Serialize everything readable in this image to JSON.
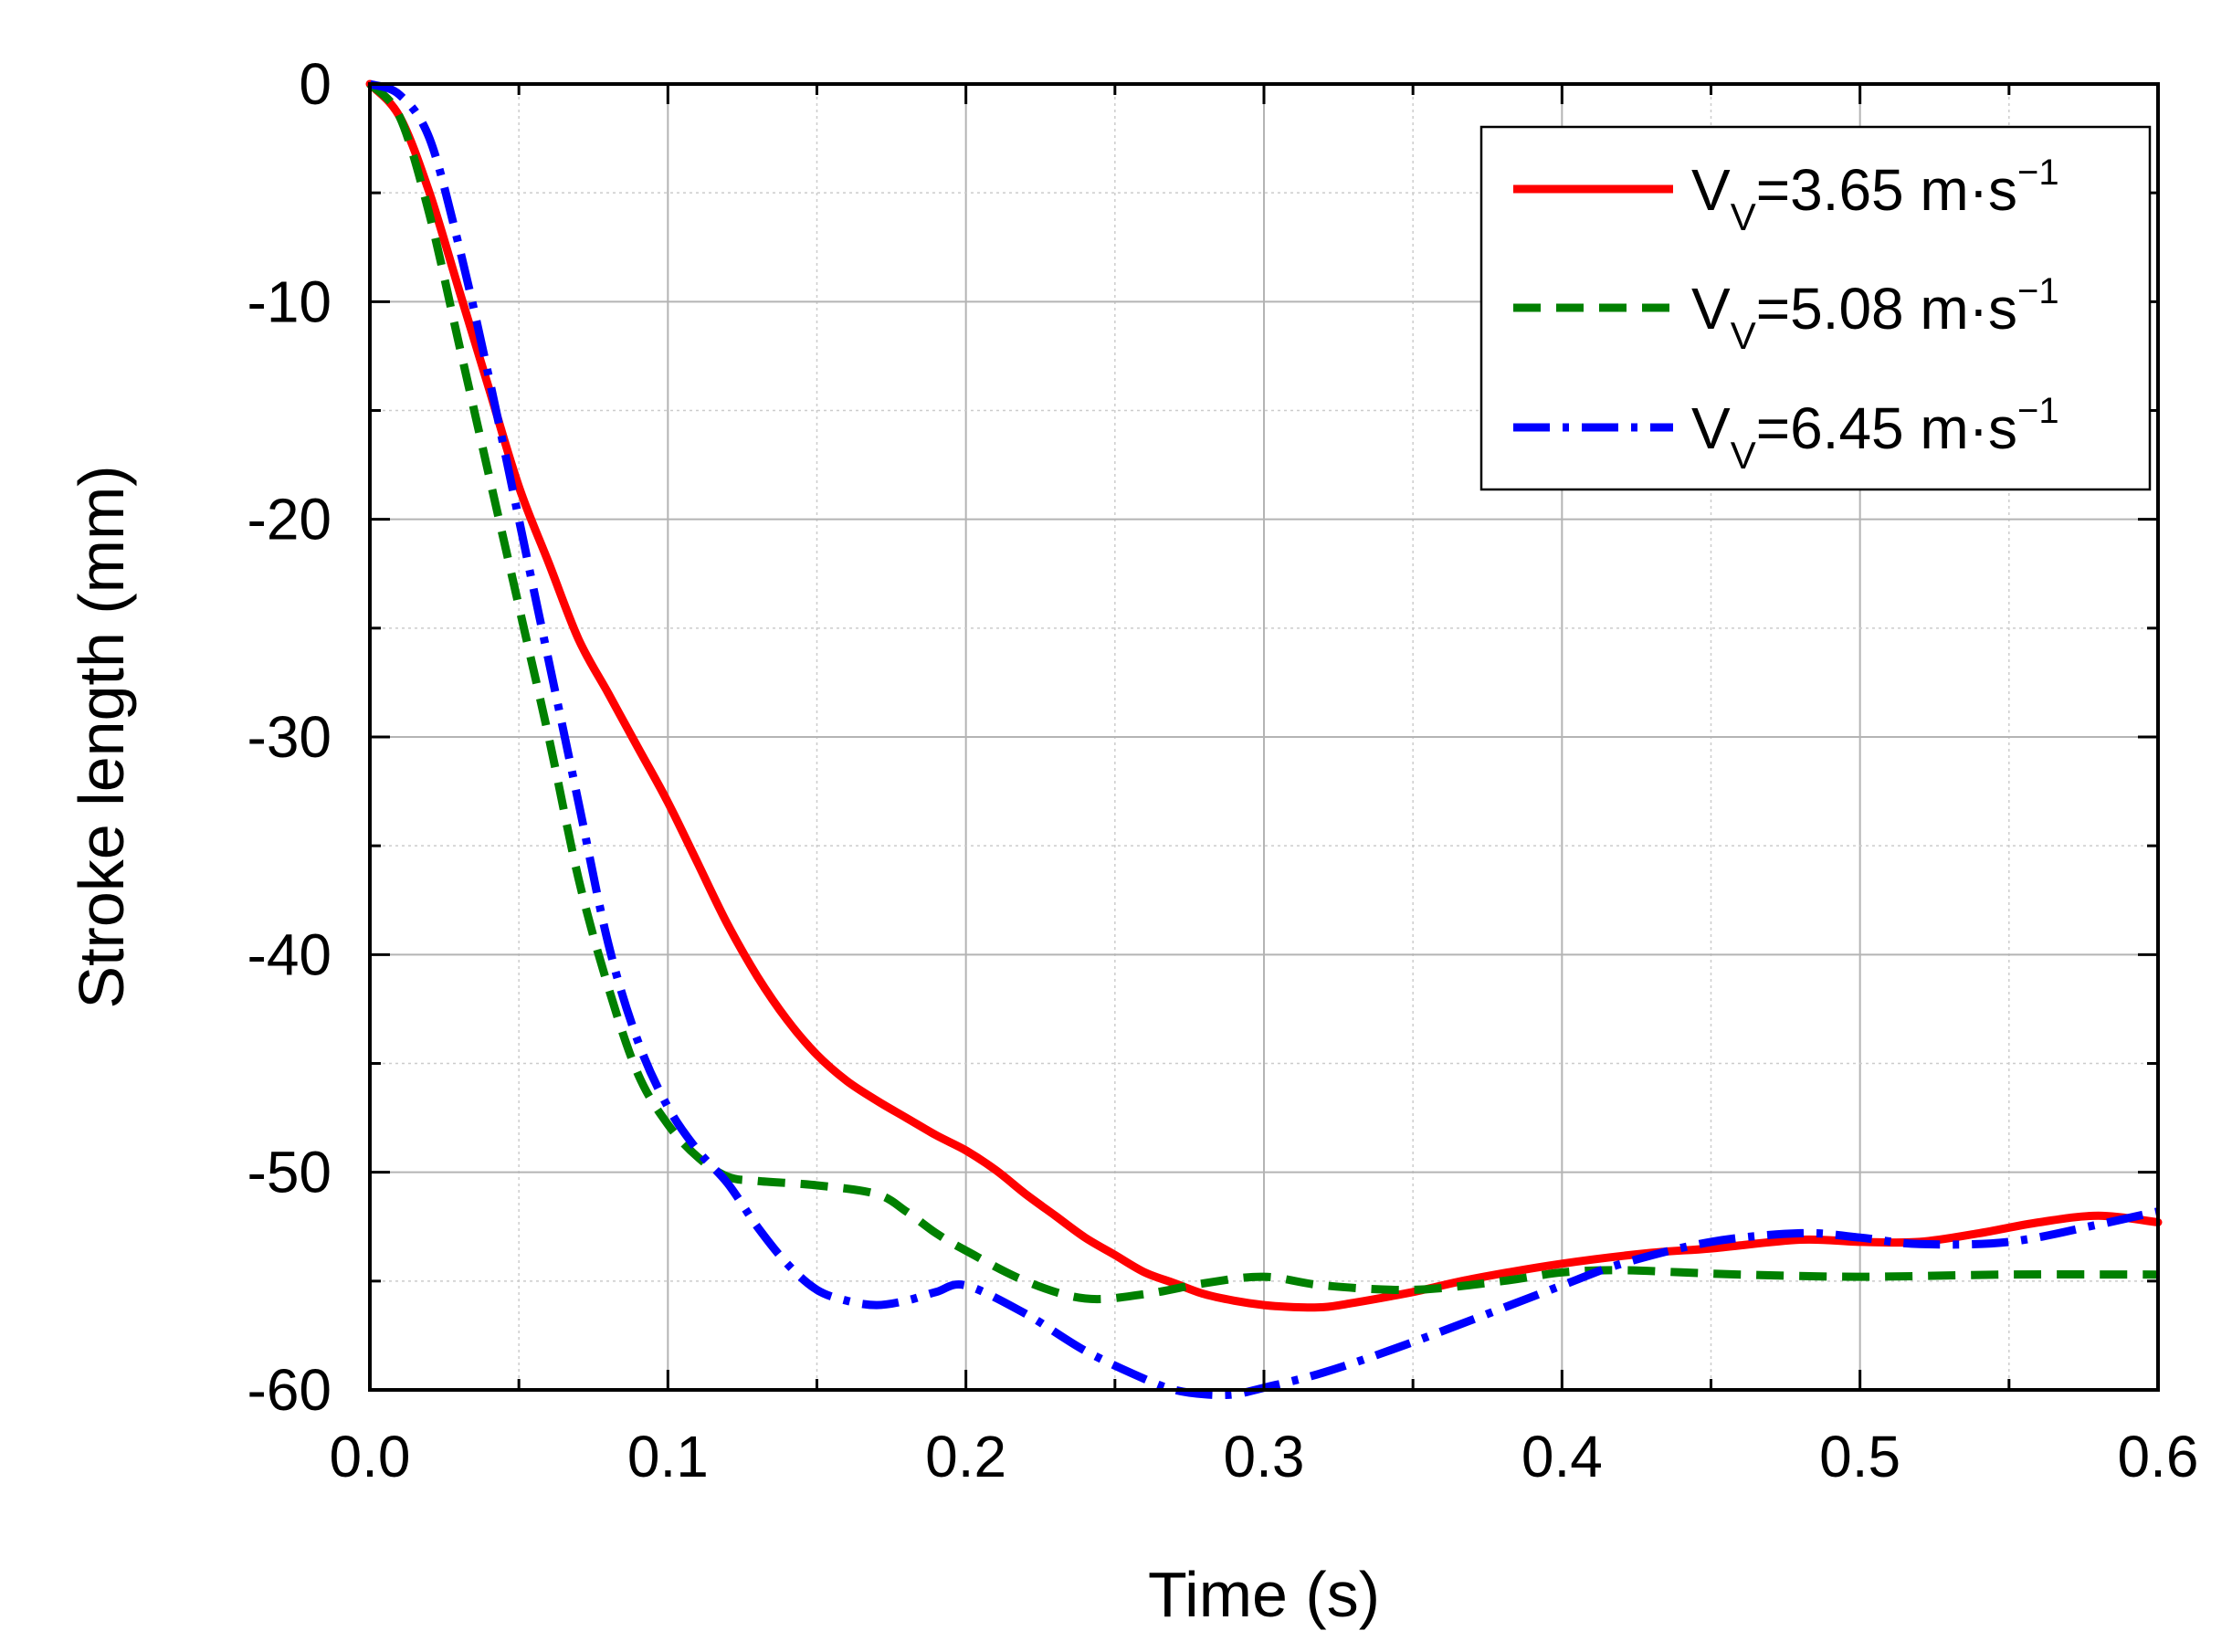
{
  "chart_data": {
    "type": "line",
    "title": "",
    "xlabel": "Time (s)",
    "ylabel": "Stroke length (mm)",
    "xlim": [
      0,
      0.6
    ],
    "ylim": [
      -60,
      0
    ],
    "x_ticks": [
      0.0,
      0.1,
      0.2,
      0.3,
      0.4,
      0.5,
      0.6
    ],
    "x_tick_labels": [
      "0.0",
      "0.1",
      "0.2",
      "0.3",
      "0.4",
      "0.5",
      "0.6"
    ],
    "y_ticks": [
      0,
      -10,
      -20,
      -30,
      -40,
      -50,
      -60
    ],
    "y_tick_labels": [
      "0",
      "-10",
      "-20",
      "-30",
      "-40",
      "-50",
      "-60"
    ],
    "grid": true,
    "legend_position": "top-right",
    "series": [
      {
        "name": "VV=3.65 m·s−1",
        "label_main": "V",
        "label_sub": "V",
        "label_value": "=3.65 m·s",
        "label_sup": "−1",
        "color": "#ff0000",
        "style": "solid",
        "x": [
          0,
          0.01,
          0.02,
          0.03,
          0.04,
          0.05,
          0.06,
          0.07,
          0.08,
          0.09,
          0.1,
          0.11,
          0.12,
          0.13,
          0.14,
          0.15,
          0.16,
          0.17,
          0.18,
          0.19,
          0.2,
          0.21,
          0.22,
          0.23,
          0.24,
          0.25,
          0.26,
          0.27,
          0.28,
          0.29,
          0.3,
          0.31,
          0.32,
          0.33,
          0.35,
          0.37,
          0.4,
          0.43,
          0.45,
          0.48,
          0.5,
          0.52,
          0.54,
          0.56,
          0.58,
          0.6
        ],
        "y": [
          0,
          -1.5,
          -5,
          -9.5,
          -14,
          -18.5,
          -22,
          -25.5,
          -28,
          -30.5,
          -33,
          -35.8,
          -38.6,
          -41,
          -43,
          -44.6,
          -45.8,
          -46.7,
          -47.5,
          -48.3,
          -49,
          -49.9,
          -51,
          -52,
          -53,
          -53.8,
          -54.6,
          -55.1,
          -55.6,
          -55.9,
          -56.1,
          -56.2,
          -56.2,
          -56,
          -55.5,
          -54.9,
          -54.2,
          -53.7,
          -53.5,
          -53.1,
          -53.2,
          -53.2,
          -52.8,
          -52.3,
          -52,
          -52.3
        ]
      },
      {
        "name": "VV=5.08 m·s−1",
        "label_main": "V",
        "label_sub": "V",
        "label_value": "=5.08 m·s",
        "label_sup": "−1",
        "color": "#008000",
        "style": "dashed",
        "x": [
          0,
          0.01,
          0.02,
          0.03,
          0.04,
          0.05,
          0.06,
          0.07,
          0.08,
          0.09,
          0.1,
          0.11,
          0.12,
          0.13,
          0.15,
          0.17,
          0.18,
          0.19,
          0.2,
          0.22,
          0.24,
          0.26,
          0.28,
          0.3,
          0.32,
          0.35,
          0.38,
          0.4,
          0.42,
          0.44,
          0.46,
          0.5,
          0.55,
          0.6
        ],
        "y": [
          0,
          -1.5,
          -6,
          -12,
          -18,
          -24,
          -30,
          -36.5,
          -41.5,
          -45.5,
          -47.8,
          -49.3,
          -50.2,
          -50.4,
          -50.6,
          -51,
          -51.8,
          -52.8,
          -53.6,
          -55,
          -55.8,
          -55.6,
          -55.1,
          -54.8,
          -55.2,
          -55.4,
          -55,
          -54.6,
          -54.5,
          -54.6,
          -54.7,
          -54.8,
          -54.7,
          -54.7
        ]
      },
      {
        "name": "VV=6.45 m·s−1",
        "label_main": "V",
        "label_sub": "V",
        "label_value": "=6.45 m·s",
        "label_sup": "−1",
        "color": "#0000ff",
        "style": "dashdot",
        "x": [
          0,
          0.01,
          0.02,
          0.03,
          0.04,
          0.05,
          0.06,
          0.07,
          0.08,
          0.09,
          0.1,
          0.11,
          0.12,
          0.13,
          0.14,
          0.15,
          0.16,
          0.17,
          0.18,
          0.19,
          0.2,
          0.22,
          0.24,
          0.26,
          0.27,
          0.28,
          0.29,
          0.3,
          0.32,
          0.35,
          0.4,
          0.42,
          0.45,
          0.48,
          0.5,
          0.52,
          0.55,
          0.58,
          0.6
        ],
        "y": [
          0,
          -0.5,
          -2.5,
          -7.5,
          -13.5,
          -20,
          -26.5,
          -33,
          -39.5,
          -44,
          -47,
          -49,
          -50.5,
          -52.5,
          -54.2,
          -55.4,
          -55.9,
          -56.1,
          -55.9,
          -55.5,
          -55.2,
          -56.5,
          -58.2,
          -59.5,
          -60,
          -60.2,
          -60.2,
          -59.9,
          -59.2,
          -57.8,
          -55.2,
          -54.2,
          -53.2,
          -52.8,
          -53,
          -53.3,
          -53.2,
          -52.4,
          -51.8
        ]
      }
    ]
  }
}
